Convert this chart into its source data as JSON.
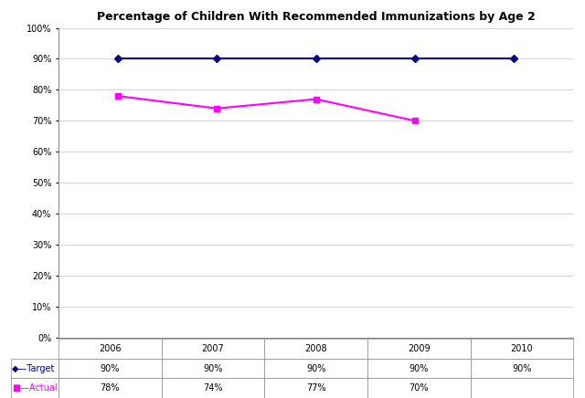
{
  "title": "Percentage of Children With Recommended Immunizations by Age 2",
  "years": [
    2006,
    2007,
    2008,
    2009,
    2010
  ],
  "target_values": [
    90,
    90,
    90,
    90,
    90
  ],
  "actual_values": [
    78,
    74,
    77,
    70,
    null
  ],
  "target_label": "Target",
  "actual_label": "Actual",
  "target_color": "#00008B",
  "actual_color": "#FF00FF",
  "ylim": [
    0,
    100
  ],
  "yticks": [
    0,
    10,
    20,
    30,
    40,
    50,
    60,
    70,
    80,
    90,
    100
  ],
  "ytick_labels": [
    "0%",
    "10%",
    "20%",
    "30%",
    "40%",
    "50%",
    "60%",
    "70%",
    "80%",
    "90%",
    "100%"
  ],
  "target_row": [
    "90%",
    "90%",
    "90%",
    "90%",
    "90%"
  ],
  "actual_row": [
    "78%",
    "74%",
    "77%",
    "70%",
    ""
  ],
  "background_color": "#FFFFFF",
  "grid_color": "#CCCCCC",
  "title_fontsize": 9,
  "tick_fontsize": 7,
  "table_fontsize": 7,
  "xlim_left": 2005.4,
  "xlim_right": 2010.6
}
